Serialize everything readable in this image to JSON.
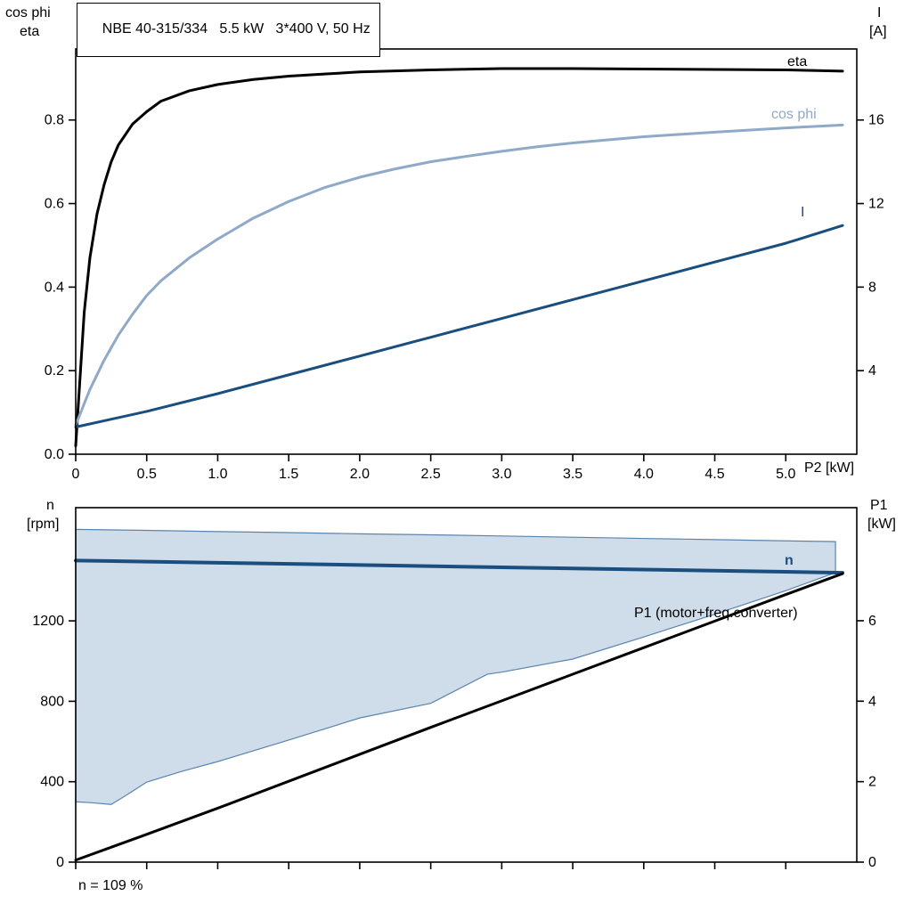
{
  "header": {
    "title": "NBE 40-315/334   5.5 kW   3*400 V, 50 Hz"
  },
  "footnote": "n = 109 %",
  "labels": {
    "top_left_axis_line1": "cos phi",
    "top_left_axis_line2": "eta",
    "top_right_axis_line1": "I",
    "top_right_axis_line2": "[A]",
    "x_axis": "P2 [kW]",
    "bottom_left_axis_line1": "n",
    "bottom_left_axis_line2": "[rpm]",
    "bottom_right_axis_line1": "P1",
    "bottom_right_axis_line2": "[kW]",
    "eta_series": "eta",
    "cosphi_series": "cos phi",
    "current_series": "I",
    "n_series": "n",
    "p1_series": "P1 (motor+freq.converter)"
  },
  "colors": {
    "eta": "#000000",
    "cos_phi": "#8fa9c8",
    "current": "#1a4e7e",
    "n": "#1a4e7e",
    "p1": "#000000",
    "band_fill": "#cfdcea",
    "band_stroke": "#5b84ad",
    "axis": "#000000"
  },
  "chart_data": [
    {
      "type": "line",
      "title": "NBE 40-315/334   5.5 kW   3*400 V, 50 Hz",
      "xlabel": "P2 [kW]",
      "ylabel_left": "cos phi / eta",
      "ylabel_right": "I [A]",
      "xlim": [
        0,
        5.5
      ],
      "ylim_left": [
        0,
        0.97
      ],
      "ylim_right": [
        0,
        19.4
      ],
      "grid": false,
      "xticks": {
        "values": [
          0,
          0.5,
          1.0,
          1.5,
          2.0,
          2.5,
          3.0,
          3.5,
          4.0,
          4.5,
          5.0
        ],
        "labels": [
          "0",
          "0.5",
          "1.0",
          "1.5",
          "2.0",
          "2.5",
          "3.0",
          "3.5",
          "4.0",
          "4.5",
          "5.0"
        ]
      },
      "yticks_left": {
        "values": [
          0,
          0.2,
          0.4,
          0.6,
          0.8
        ],
        "labels": [
          "0.0",
          "0.2",
          "0.4",
          "0.6",
          "0.8"
        ]
      },
      "yticks_right": {
        "values": [
          4,
          8,
          12,
          16
        ],
        "labels": [
          "4",
          "8",
          "12",
          "16"
        ]
      },
      "series": [
        {
          "name": "eta",
          "id": "eta",
          "axis": "left",
          "color": "#000000",
          "width": 3,
          "points": [
            [
              0,
              0.02
            ],
            [
              0.03,
              0.18
            ],
            [
              0.06,
              0.34
            ],
            [
              0.1,
              0.47
            ],
            [
              0.15,
              0.575
            ],
            [
              0.2,
              0.645
            ],
            [
              0.25,
              0.7
            ],
            [
              0.3,
              0.74
            ],
            [
              0.4,
              0.79
            ],
            [
              0.5,
              0.82
            ],
            [
              0.6,
              0.845
            ],
            [
              0.8,
              0.87
            ],
            [
              1.0,
              0.885
            ],
            [
              1.25,
              0.897
            ],
            [
              1.5,
              0.905
            ],
            [
              1.75,
              0.91
            ],
            [
              2.0,
              0.915
            ],
            [
              2.5,
              0.92
            ],
            [
              3.0,
              0.923
            ],
            [
              3.5,
              0.923
            ],
            [
              4.0,
              0.922
            ],
            [
              4.5,
              0.921
            ],
            [
              5.0,
              0.92
            ],
            [
              5.4,
              0.917
            ]
          ]
        },
        {
          "name": "cos phi",
          "id": "cos-phi",
          "axis": "left",
          "color": "#8fa9c8",
          "width": 3,
          "points": [
            [
              0,
              0.07
            ],
            [
              0.1,
              0.155
            ],
            [
              0.2,
              0.225
            ],
            [
              0.3,
              0.285
            ],
            [
              0.4,
              0.335
            ],
            [
              0.5,
              0.38
            ],
            [
              0.6,
              0.415
            ],
            [
              0.8,
              0.47
            ],
            [
              1.0,
              0.515
            ],
            [
              1.25,
              0.565
            ],
            [
              1.5,
              0.605
            ],
            [
              1.75,
              0.638
            ],
            [
              2.0,
              0.663
            ],
            [
              2.25,
              0.683
            ],
            [
              2.5,
              0.7
            ],
            [
              2.75,
              0.713
            ],
            [
              3.0,
              0.725
            ],
            [
              3.25,
              0.736
            ],
            [
              3.5,
              0.745
            ],
            [
              4.0,
              0.76
            ],
            [
              4.5,
              0.771
            ],
            [
              5.0,
              0.781
            ],
            [
              5.4,
              0.788
            ]
          ]
        },
        {
          "name": "I",
          "id": "current",
          "axis": "right",
          "color": "#1a4e7e",
          "width": 3,
          "points": [
            [
              0,
              1.3
            ],
            [
              0.5,
              2.05
            ],
            [
              1.0,
              2.9
            ],
            [
              1.5,
              3.8
            ],
            [
              2.0,
              4.7
            ],
            [
              2.5,
              5.6
            ],
            [
              3.0,
              6.5
            ],
            [
              3.5,
              7.4
            ],
            [
              4.0,
              8.3
            ],
            [
              4.5,
              9.2
            ],
            [
              5.0,
              10.1
            ],
            [
              5.4,
              10.95
            ]
          ]
        }
      ]
    },
    {
      "type": "line",
      "title": "",
      "xlabel": "",
      "ylabel_left": "n [rpm]",
      "ylabel_right": "P1 [kW]",
      "xlim": [
        0,
        5.5
      ],
      "ylim_left": [
        0,
        1763
      ],
      "ylim_right": [
        0,
        8.81
      ],
      "grid": false,
      "note": "n = 109 %",
      "xticks": {
        "values": [
          0,
          0.5,
          1.0,
          1.5,
          2.0,
          2.5,
          3.0,
          3.5,
          4.0,
          4.5,
          5.0
        ],
        "labels": [
          "",
          "",
          "",
          "",
          "",
          "",
          "",
          "",
          "",
          "",
          ""
        ]
      },
      "yticks_left": {
        "values": [
          0,
          400,
          800,
          1200
        ],
        "labels": [
          "0",
          "400",
          "800",
          "1200"
        ]
      },
      "yticks_right": {
        "values": [
          0,
          2,
          4,
          6
        ],
        "labels": [
          "0",
          "2",
          "4",
          "6"
        ]
      },
      "band": {
        "name": "speed-range",
        "axis": "left",
        "fill": "#cfdcea",
        "stroke": "#5b84ad",
        "points": [
          [
            0,
            1655
          ],
          [
            0.5,
            1650
          ],
          [
            1.0,
            1644
          ],
          [
            1.5,
            1639
          ],
          [
            2.0,
            1633
          ],
          [
            2.5,
            1628
          ],
          [
            3.0,
            1622
          ],
          [
            3.5,
            1616
          ],
          [
            4.0,
            1610
          ],
          [
            4.5,
            1604
          ],
          [
            5.0,
            1598
          ],
          [
            5.35,
            1594
          ],
          [
            5.35,
            1440
          ],
          [
            5.0,
            1350
          ],
          [
            4.5,
            1233
          ],
          [
            4.0,
            1120
          ],
          [
            3.5,
            1010
          ],
          [
            3.0,
            945
          ],
          [
            2.9,
            935
          ],
          [
            2.5,
            790
          ],
          [
            2.0,
            717
          ],
          [
            1.5,
            607
          ],
          [
            1.0,
            500
          ],
          [
            0.75,
            452
          ],
          [
            0.5,
            398
          ],
          [
            0.35,
            330
          ],
          [
            0.25,
            287
          ],
          [
            0.1,
            296
          ],
          [
            0,
            300
          ]
        ]
      },
      "series": [
        {
          "name": "n",
          "id": "n",
          "axis": "left",
          "color": "#1a4e7e",
          "width": 4,
          "points": [
            [
              0,
              1500
            ],
            [
              1.0,
              1489
            ],
            [
              2.0,
              1478
            ],
            [
              3.0,
              1466
            ],
            [
              4.0,
              1455
            ],
            [
              5.0,
              1444
            ],
            [
              5.4,
              1439
            ]
          ]
        },
        {
          "name": "P1 (motor+freq.converter)",
          "id": "p1",
          "axis": "right",
          "color": "#000000",
          "width": 3,
          "points": [
            [
              0,
              0.05
            ],
            [
              0.5,
              0.69
            ],
            [
              1.0,
              1.34
            ],
            [
              1.5,
              2.01
            ],
            [
              2.0,
              2.68
            ],
            [
              2.5,
              3.35
            ],
            [
              3.0,
              4.01
            ],
            [
              3.5,
              4.67
            ],
            [
              4.0,
              5.33
            ],
            [
              4.5,
              5.99
            ],
            [
              5.0,
              6.65
            ],
            [
              5.4,
              7.17
            ]
          ]
        }
      ]
    }
  ]
}
